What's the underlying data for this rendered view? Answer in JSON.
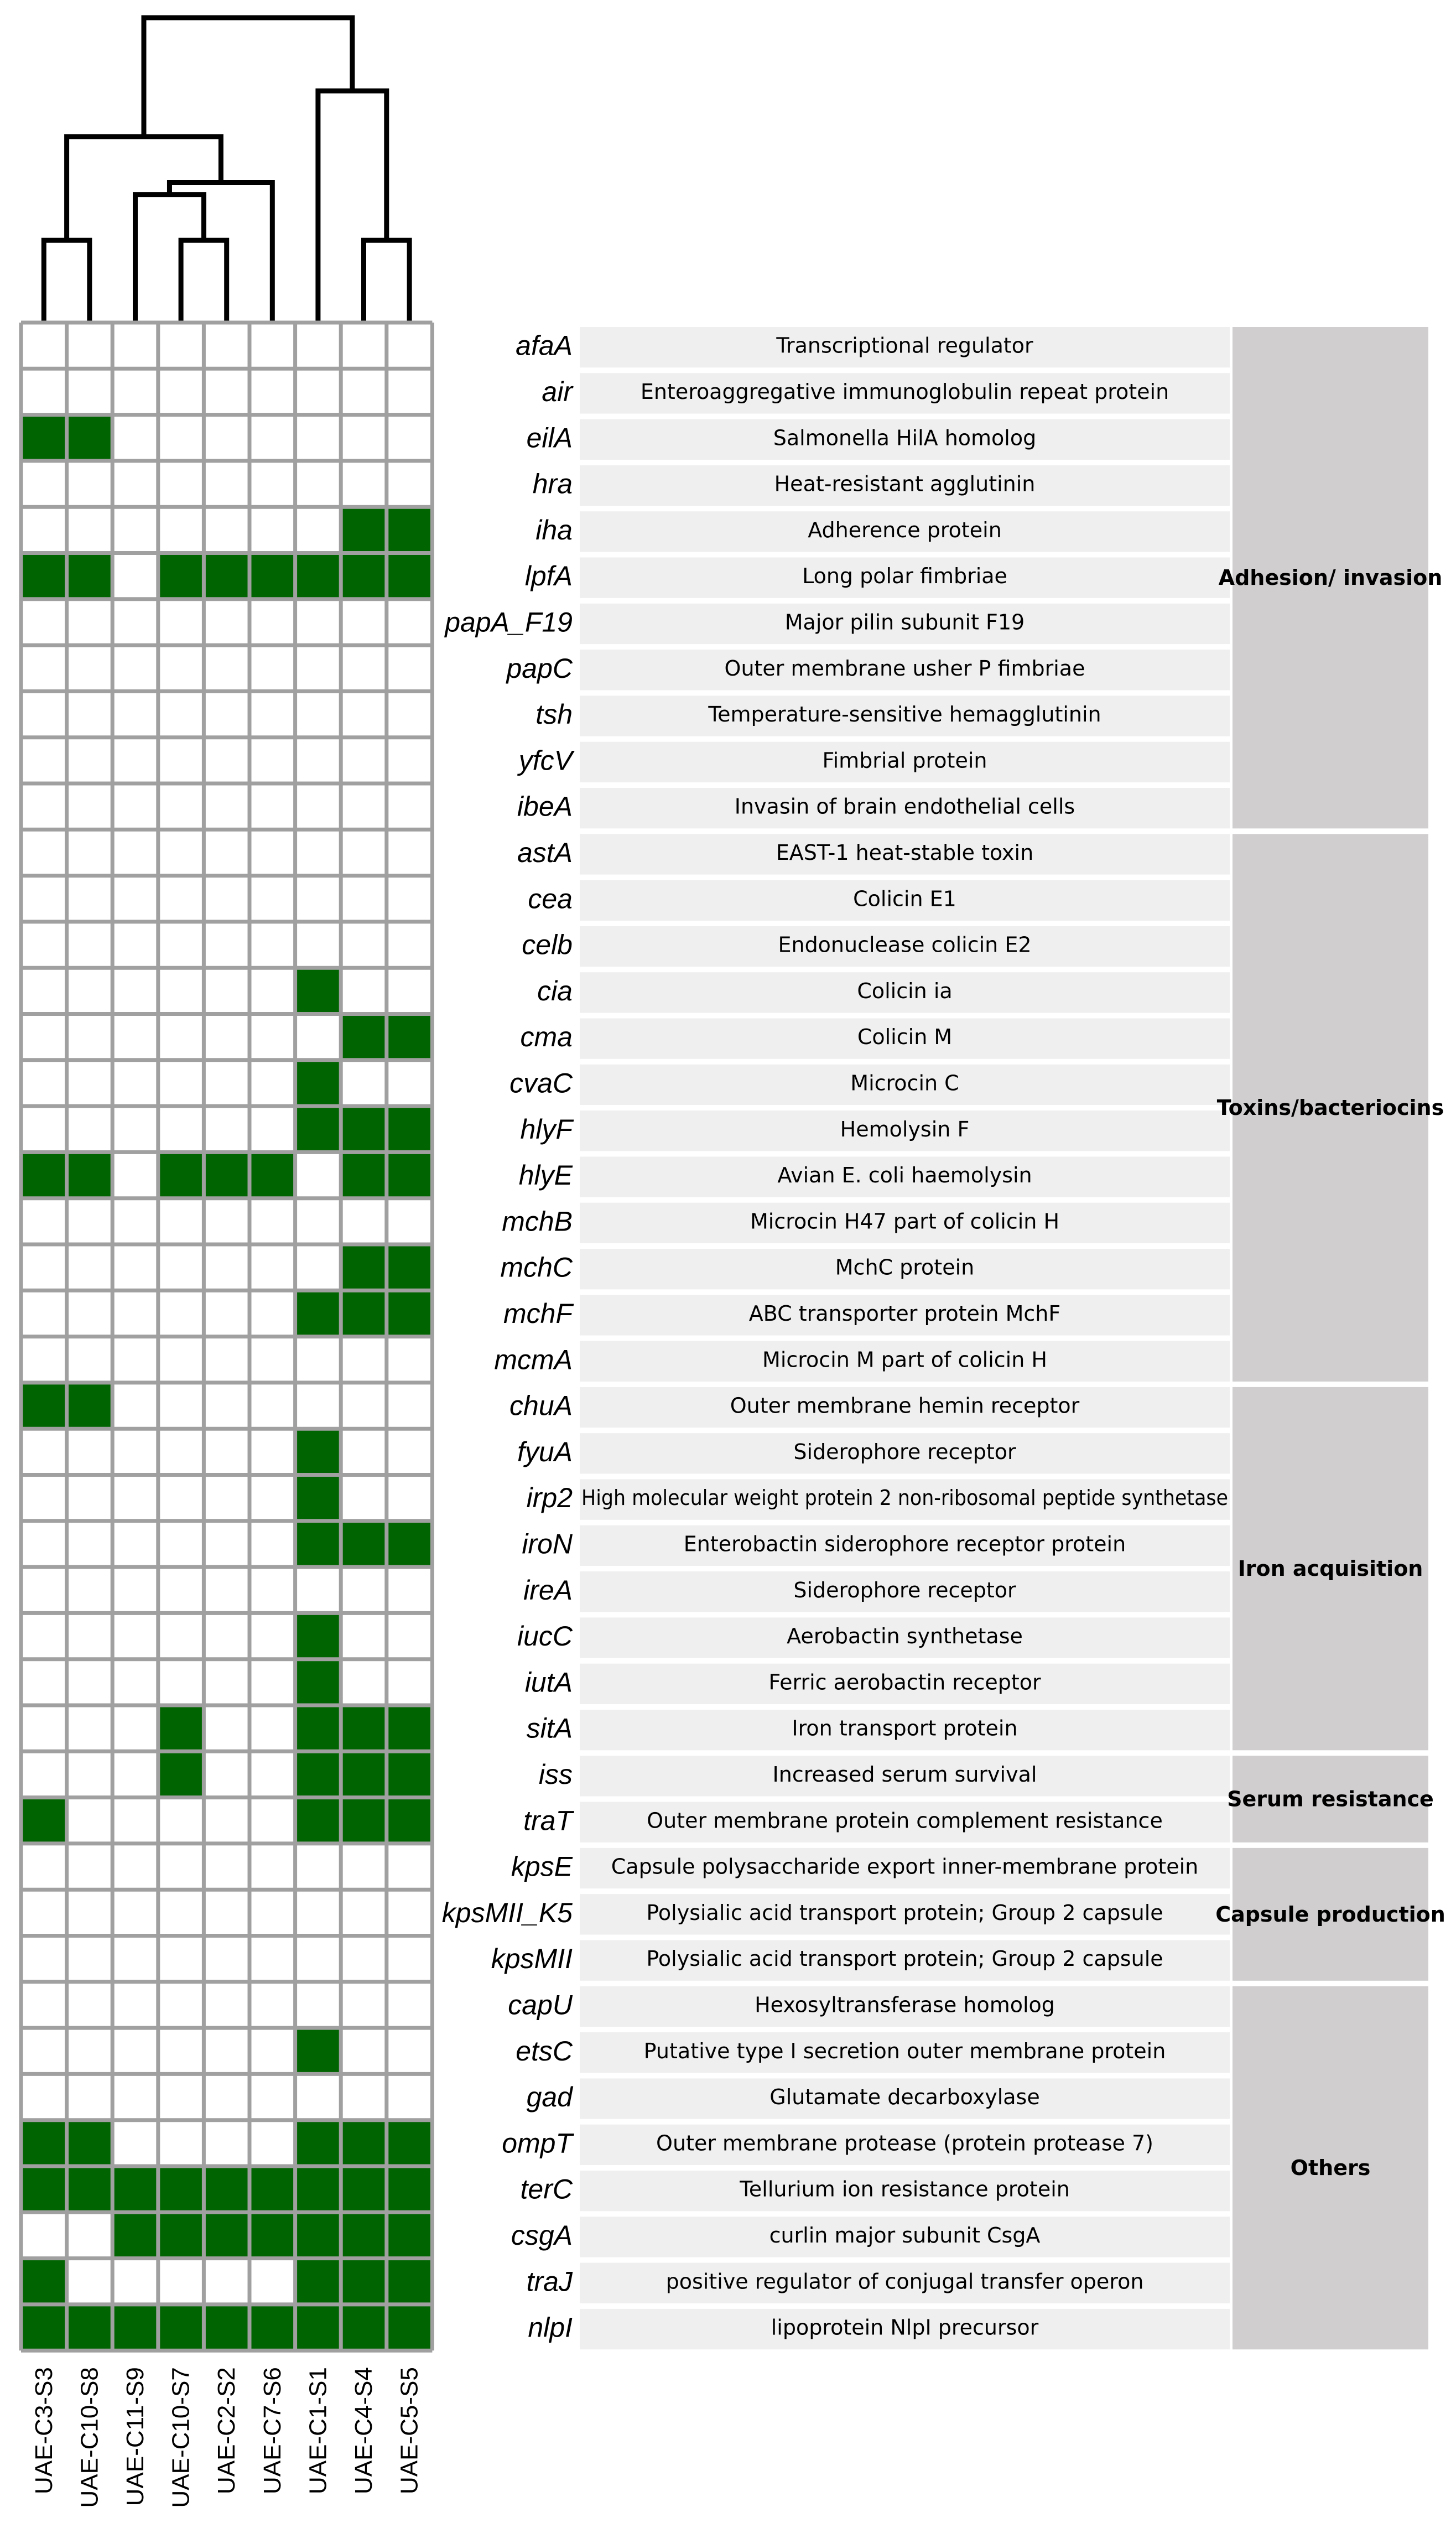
{
  "chart_data": {
    "type": "heatmap",
    "title": "",
    "samples": [
      "UAE-C3-S3",
      "UAE-C10-S8",
      "UAE-C11-S9",
      "UAE-C10-S7",
      "UAE-C2-S2",
      "UAE-C7-S6",
      "UAE-C1-S1",
      "UAE-C4-S4",
      "UAE-C5-S5"
    ],
    "colors": {
      "present": "#006400",
      "absent": "#ffffff",
      "grid": "#a0a0a0",
      "desc_bg": "#efefef",
      "cat_bg": "#d0cece",
      "tree": "#000000"
    },
    "genes": [
      {
        "name": "afaA",
        "description": "Transcriptional regulator",
        "presence": [
          0,
          0,
          0,
          0,
          0,
          0,
          0,
          0,
          0
        ]
      },
      {
        "name": "air",
        "description": "Enteroaggregative immunoglobulin repeat protein",
        "presence": [
          0,
          0,
          0,
          0,
          0,
          0,
          0,
          0,
          0
        ]
      },
      {
        "name": "eilA",
        "description": "Salmonella HilA homolog",
        "presence": [
          1,
          1,
          0,
          0,
          0,
          0,
          0,
          0,
          0
        ]
      },
      {
        "name": "hra",
        "description": "Heat-resistant agglutinin",
        "presence": [
          0,
          0,
          0,
          0,
          0,
          0,
          0,
          0,
          0
        ]
      },
      {
        "name": "iha",
        "description": "Adherence protein",
        "presence": [
          0,
          0,
          0,
          0,
          0,
          0,
          0,
          1,
          1
        ]
      },
      {
        "name": "lpfA",
        "description": "Long polar fimbriae",
        "presence": [
          1,
          1,
          0,
          1,
          1,
          1,
          1,
          1,
          1
        ]
      },
      {
        "name": "papA_F19",
        "description": "Major pilin subunit F19",
        "presence": [
          0,
          0,
          0,
          0,
          0,
          0,
          0,
          0,
          0
        ]
      },
      {
        "name": "papC",
        "description": "Outer membrane usher P fimbriae",
        "presence": [
          0,
          0,
          0,
          0,
          0,
          0,
          0,
          0,
          0
        ]
      },
      {
        "name": "tsh",
        "description": "Temperature-sensitive hemagglutinin",
        "presence": [
          0,
          0,
          0,
          0,
          0,
          0,
          0,
          0,
          0
        ]
      },
      {
        "name": "yfcV",
        "description": "Fimbrial protein",
        "presence": [
          0,
          0,
          0,
          0,
          0,
          0,
          0,
          0,
          0
        ]
      },
      {
        "name": "ibeA",
        "description": "Invasin of brain endothelial cells",
        "presence": [
          0,
          0,
          0,
          0,
          0,
          0,
          0,
          0,
          0
        ]
      },
      {
        "name": "astA",
        "description": "EAST-1 heat-stable toxin",
        "presence": [
          0,
          0,
          0,
          0,
          0,
          0,
          0,
          0,
          0
        ]
      },
      {
        "name": "cea",
        "description": "Colicin E1",
        "presence": [
          0,
          0,
          0,
          0,
          0,
          0,
          0,
          0,
          0
        ]
      },
      {
        "name": "celb",
        "description": "Endonuclease colicin E2",
        "presence": [
          0,
          0,
          0,
          0,
          0,
          0,
          0,
          0,
          0
        ]
      },
      {
        "name": "cia",
        "description": "Colicin ia",
        "presence": [
          0,
          0,
          0,
          0,
          0,
          0,
          1,
          0,
          0
        ]
      },
      {
        "name": "cma",
        "description": "Colicin M",
        "presence": [
          0,
          0,
          0,
          0,
          0,
          0,
          0,
          1,
          1
        ]
      },
      {
        "name": "cvaC",
        "description": "Microcin C",
        "presence": [
          0,
          0,
          0,
          0,
          0,
          0,
          1,
          0,
          0
        ]
      },
      {
        "name": "hlyF",
        "description": "Hemolysin F",
        "presence": [
          0,
          0,
          0,
          0,
          0,
          0,
          1,
          1,
          1
        ]
      },
      {
        "name": "hlyE",
        "description": "Avian E. coli haemolysin",
        "presence": [
          1,
          1,
          0,
          1,
          1,
          1,
          0,
          1,
          1
        ]
      },
      {
        "name": "mchB",
        "description": "Microcin H47 part of colicin H",
        "presence": [
          0,
          0,
          0,
          0,
          0,
          0,
          0,
          0,
          0
        ]
      },
      {
        "name": "mchC",
        "description": "MchC protein",
        "presence": [
          0,
          0,
          0,
          0,
          0,
          0,
          0,
          1,
          1
        ]
      },
      {
        "name": "mchF",
        "description": "ABC transporter protein MchF",
        "presence": [
          0,
          0,
          0,
          0,
          0,
          0,
          1,
          1,
          1
        ]
      },
      {
        "name": "mcmA",
        "description": "Microcin M part of colicin H",
        "presence": [
          0,
          0,
          0,
          0,
          0,
          0,
          0,
          0,
          0
        ]
      },
      {
        "name": "chuA",
        "description": "Outer membrane hemin receptor",
        "presence": [
          1,
          1,
          0,
          0,
          0,
          0,
          0,
          0,
          0
        ]
      },
      {
        "name": "fyuA",
        "description": "Siderophore receptor",
        "presence": [
          0,
          0,
          0,
          0,
          0,
          0,
          1,
          0,
          0
        ]
      },
      {
        "name": "irp2",
        "description": "High molecular weight protein 2 non-ribosomal peptide synthetase",
        "presence": [
          0,
          0,
          0,
          0,
          0,
          0,
          1,
          0,
          0
        ]
      },
      {
        "name": "iroN",
        "description": "Enterobactin siderophore receptor protein",
        "presence": [
          0,
          0,
          0,
          0,
          0,
          0,
          1,
          1,
          1
        ]
      },
      {
        "name": "ireA",
        "description": "Siderophore receptor",
        "presence": [
          0,
          0,
          0,
          0,
          0,
          0,
          0,
          0,
          0
        ]
      },
      {
        "name": "iucC",
        "description": "Aerobactin synthetase",
        "presence": [
          0,
          0,
          0,
          0,
          0,
          0,
          1,
          0,
          0
        ]
      },
      {
        "name": "iutA",
        "description": "Ferric aerobactin receptor",
        "presence": [
          0,
          0,
          0,
          0,
          0,
          0,
          1,
          0,
          0
        ]
      },
      {
        "name": "sitA",
        "description": "Iron transport protein",
        "presence": [
          0,
          0,
          0,
          1,
          0,
          0,
          1,
          1,
          1
        ]
      },
      {
        "name": "iss",
        "description": "Increased serum survival",
        "presence": [
          0,
          0,
          0,
          1,
          0,
          0,
          1,
          1,
          1
        ]
      },
      {
        "name": "traT",
        "description": "Outer membrane protein complement resistance",
        "presence": [
          1,
          0,
          0,
          0,
          0,
          0,
          1,
          1,
          1
        ]
      },
      {
        "name": "kpsE",
        "description": "Capsule polysaccharide export inner-membrane protein",
        "presence": [
          0,
          0,
          0,
          0,
          0,
          0,
          0,
          0,
          0
        ]
      },
      {
        "name": "kpsMII_K5",
        "description": "Polysialic acid transport protein; Group 2 capsule",
        "presence": [
          0,
          0,
          0,
          0,
          0,
          0,
          0,
          0,
          0
        ]
      },
      {
        "name": "kpsMII",
        "description": "Polysialic acid transport protein; Group 2 capsule",
        "presence": [
          0,
          0,
          0,
          0,
          0,
          0,
          0,
          0,
          0
        ]
      },
      {
        "name": "capU",
        "description": "Hexosyltransferase homolog",
        "presence": [
          0,
          0,
          0,
          0,
          0,
          0,
          0,
          0,
          0
        ]
      },
      {
        "name": "etsC",
        "description": "Putative type I secretion outer membrane protein",
        "presence": [
          0,
          0,
          0,
          0,
          0,
          0,
          1,
          0,
          0
        ]
      },
      {
        "name": "gad",
        "description": "Glutamate decarboxylase",
        "presence": [
          0,
          0,
          0,
          0,
          0,
          0,
          0,
          0,
          0
        ]
      },
      {
        "name": "ompT",
        "description": "Outer membrane protease (protein protease 7)",
        "presence": [
          1,
          1,
          0,
          0,
          0,
          0,
          1,
          1,
          1
        ]
      },
      {
        "name": "terC",
        "description": "Tellurium ion resistance protein",
        "presence": [
          1,
          1,
          1,
          1,
          1,
          1,
          1,
          1,
          1
        ]
      },
      {
        "name": "csgA",
        "description": "curlin major subunit CsgA",
        "presence": [
          0,
          0,
          1,
          1,
          1,
          1,
          1,
          1,
          1
        ]
      },
      {
        "name": "traJ",
        "description": "positive regulator of conjugal transfer operon",
        "presence": [
          1,
          0,
          0,
          0,
          0,
          0,
          1,
          1,
          1
        ]
      },
      {
        "name": "nlpI",
        "description": "lipoprotein NlpI precursor",
        "presence": [
          1,
          1,
          1,
          1,
          1,
          1,
          1,
          1,
          1
        ]
      }
    ],
    "categories": [
      {
        "label": "Adhesion/ invasion",
        "start": 0,
        "end": 10
      },
      {
        "label": "Toxins/bacteriocins",
        "start": 11,
        "end": 22
      },
      {
        "label": "Iron acquisition",
        "start": 23,
        "end": 30
      },
      {
        "label": "Serum resistance",
        "start": 31,
        "end": 32
      },
      {
        "label": "Capsule production",
        "start": 33,
        "end": 35
      },
      {
        "label": "Others",
        "start": 36,
        "end": 43
      }
    ],
    "dendrogram": {
      "leaf_order": [
        "UAE-C3-S3",
        "UAE-C10-S8",
        "UAE-C11-S9",
        "UAE-C10-S7",
        "UAE-C2-S2",
        "UAE-C7-S6",
        "UAE-C1-S1",
        "UAE-C4-S4",
        "UAE-C5-S5"
      ],
      "merges": [
        {
          "left": "leaf:0",
          "right": "leaf:1",
          "height": 0.27
        },
        {
          "left": "leaf:3",
          "right": "leaf:4",
          "height": 0.27
        },
        {
          "left": "leaf:7",
          "right": "leaf:8",
          "height": 0.27
        },
        {
          "left": "leaf:2",
          "right": "node:1",
          "height": 0.42
        },
        {
          "left": "node:3",
          "right": "leaf:5",
          "height": 0.46
        },
        {
          "left": "node:0",
          "right": "node:4",
          "height": 0.61
        },
        {
          "left": "leaf:6",
          "right": "node:2",
          "height": 0.76
        },
        {
          "left": "node:5",
          "right": "node:6",
          "height": 1.0
        }
      ]
    }
  }
}
